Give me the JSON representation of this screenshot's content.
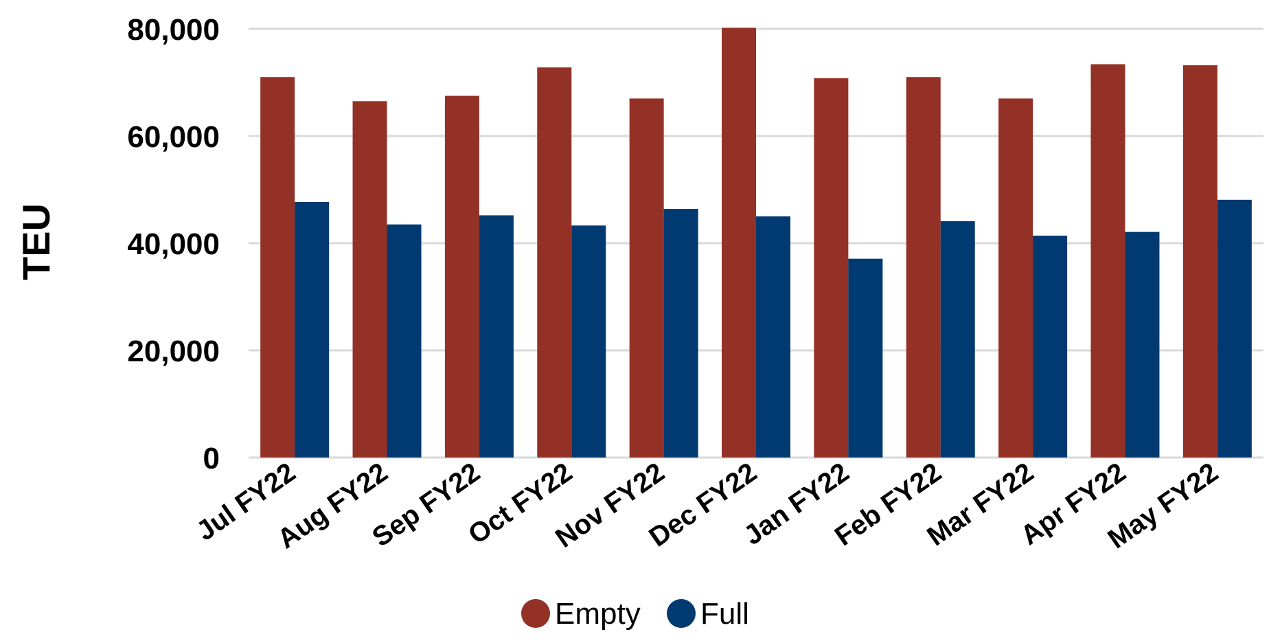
{
  "chart_data": {
    "type": "bar",
    "categories": [
      "Jul FY22",
      "Aug FY22",
      "Sep FY22",
      "Oct FY22",
      "Nov FY22",
      "Dec FY22",
      "Jan FY22",
      "Feb FY22",
      "Mar FY22",
      "Apr FY22",
      "May FY22"
    ],
    "series": [
      {
        "name": "Empty",
        "color": "#943126",
        "values": [
          71000,
          66500,
          67500,
          72800,
          67000,
          80200,
          70800,
          71000,
          67000,
          73400,
          73200
        ]
      },
      {
        "name": "Full",
        "color": "#003A70",
        "values": [
          47700,
          43500,
          45200,
          43300,
          46400,
          45000,
          37100,
          44100,
          41400,
          42100,
          48100
        ]
      }
    ],
    "title": "",
    "xlabel": "",
    "ylabel": "TEU",
    "ylim": [
      0,
      80000
    ],
    "yticks": [
      "0",
      "20,000",
      "40,000",
      "60,000",
      "80,000"
    ],
    "grid": true,
    "legend_position": "bottom"
  }
}
